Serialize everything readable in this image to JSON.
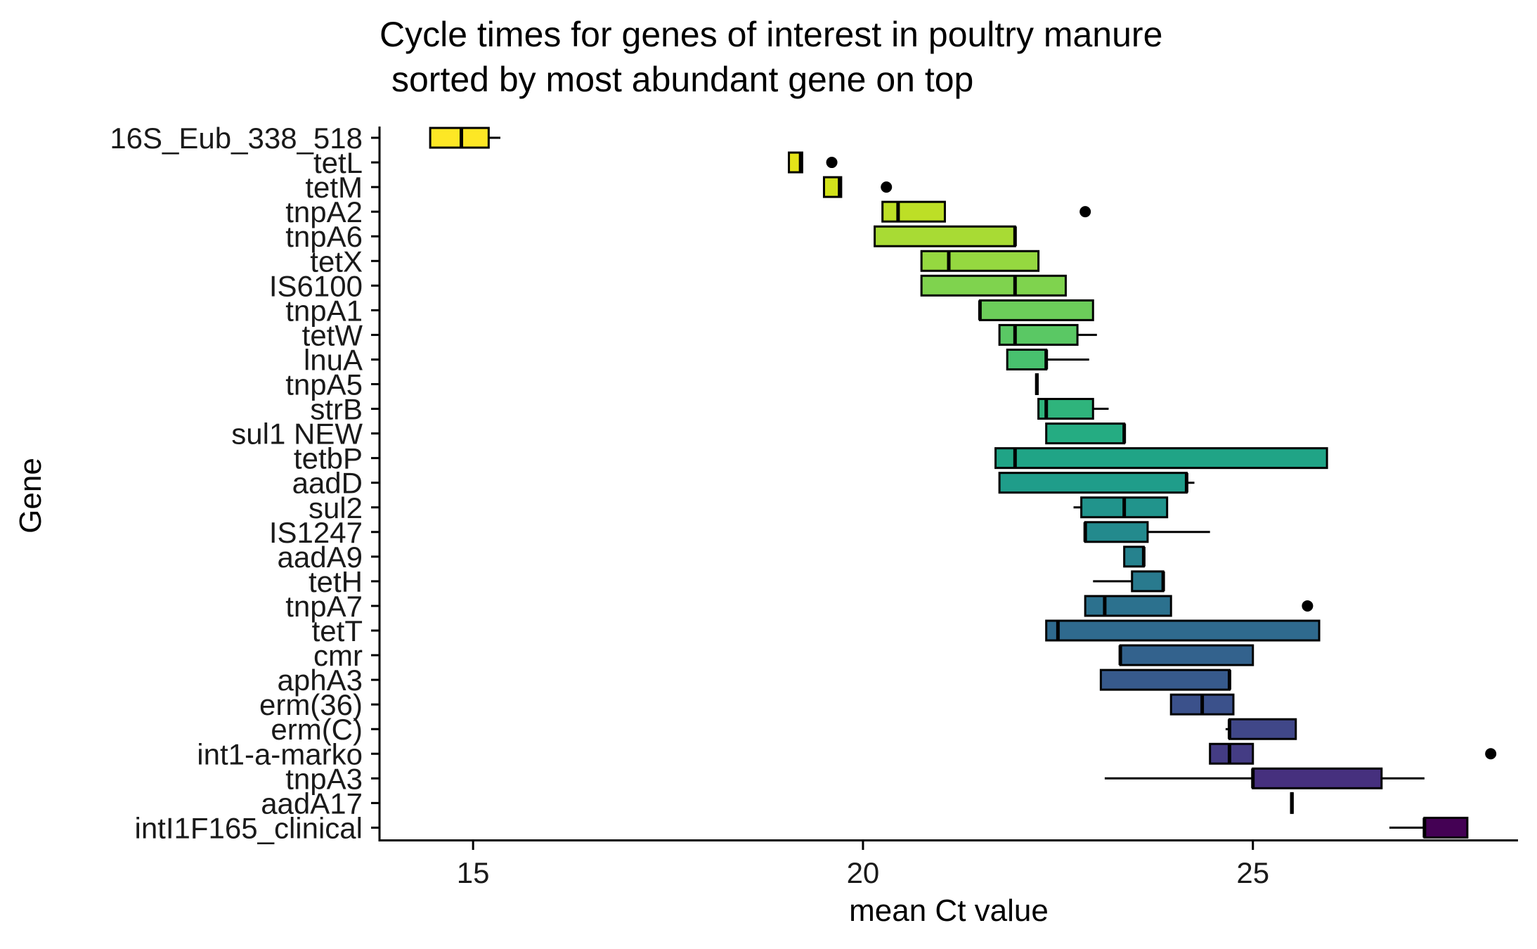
{
  "chart_data": {
    "type": "boxplot",
    "orientation": "horizontal",
    "title": [
      "Cycle times for genes of interest in poultry manure",
      "sorted by most abundant gene on top"
    ],
    "xlabel": "mean Ct value",
    "ylabel": "Gene",
    "xlim": [
      13.8,
      28.4
    ],
    "xticks": [
      15,
      20,
      25
    ],
    "grid": false,
    "legend": "none",
    "categories": [
      "16S_Eub_338_518",
      "tetL",
      "tetM",
      "tnpA2",
      "tnpA6",
      "tetX",
      "IS6100",
      "tnpA1",
      "tetW",
      "lnuA",
      "tnpA5",
      "strB",
      "sul1 NEW",
      "tetbP",
      "aadD",
      "sul2",
      "IS1247",
      "aadA9",
      "tetH",
      "tnpA7",
      "tetT",
      "cmr",
      "aphA3",
      "erm(36)",
      "erm(C)",
      "int1-a-marko",
      "tnpA3",
      "aadA17",
      "intI1F165_clinical"
    ],
    "boxes": [
      {
        "gene": "16S_Eub_338_518",
        "color": "#fde725",
        "whisker_low": 14.45,
        "q1": 14.45,
        "median": 14.85,
        "q3": 15.2,
        "whisker_high": 15.35,
        "outliers": []
      },
      {
        "gene": "tetL",
        "color": "#e5e419",
        "whisker_low": 19.05,
        "q1": 19.05,
        "median": 19.2,
        "q3": 19.22,
        "whisker_high": 19.22,
        "outliers": [
          19.6
        ]
      },
      {
        "gene": "tetM",
        "color": "#d2e21b",
        "whisker_low": 19.5,
        "q1": 19.5,
        "median": 19.7,
        "q3": 19.72,
        "whisker_high": 19.72,
        "outliers": [
          20.3
        ]
      },
      {
        "gene": "tnpA2",
        "color": "#bddf26",
        "whisker_low": 20.25,
        "q1": 20.25,
        "median": 20.45,
        "q3": 21.05,
        "whisker_high": 21.05,
        "outliers": [
          22.85
        ]
      },
      {
        "gene": "tnpA6",
        "color": "#a8db34",
        "whisker_low": 20.15,
        "q1": 20.15,
        "median": 21.95,
        "q3": 21.95,
        "whisker_high": 21.95,
        "outliers": []
      },
      {
        "gene": "tetX",
        "color": "#95d840",
        "whisker_low": 20.75,
        "q1": 20.75,
        "median": 21.1,
        "q3": 22.25,
        "whisker_high": 22.25,
        "outliers": []
      },
      {
        "gene": "IS6100",
        "color": "#7fd34e",
        "whisker_low": 20.75,
        "q1": 20.75,
        "median": 21.95,
        "q3": 22.6,
        "whisker_high": 22.6,
        "outliers": []
      },
      {
        "gene": "tnpA1",
        "color": "#6ccd5a",
        "whisker_low": 21.5,
        "q1": 21.5,
        "median": 21.5,
        "q3": 22.95,
        "whisker_high": 22.95,
        "outliers": []
      },
      {
        "gene": "tetW",
        "color": "#5ac864",
        "whisker_low": 21.75,
        "q1": 21.75,
        "median": 21.95,
        "q3": 22.75,
        "whisker_high": 23.0,
        "outliers": []
      },
      {
        "gene": "lnuA",
        "color": "#48c16e",
        "whisker_low": 21.85,
        "q1": 21.85,
        "median": 22.35,
        "q3": 22.35,
        "whisker_high": 22.9,
        "outliers": []
      },
      {
        "gene": "tnpA5",
        "color": "#3bbb75",
        "whisker_low": 22.22,
        "q1": 22.22,
        "median": 22.23,
        "q3": 22.24,
        "whisker_high": 22.24,
        "outliers": []
      },
      {
        "gene": "strB",
        "color": "#2fb47c",
        "whisker_low": 22.25,
        "q1": 22.25,
        "median": 22.35,
        "q3": 22.95,
        "whisker_high": 23.15,
        "outliers": []
      },
      {
        "gene": "sul1 NEW",
        "color": "#25ac82",
        "whisker_low": 22.35,
        "q1": 22.35,
        "median": 23.35,
        "q3": 23.35,
        "whisker_high": 23.35,
        "outliers": []
      },
      {
        "gene": "tetbP",
        "color": "#20a486",
        "whisker_low": 21.7,
        "q1": 21.7,
        "median": 21.95,
        "q3": 25.95,
        "whisker_high": 25.95,
        "outliers": []
      },
      {
        "gene": "aadD",
        "color": "#1f9d8a",
        "whisker_low": 21.75,
        "q1": 21.75,
        "median": 24.15,
        "q3": 24.15,
        "whisker_high": 24.25,
        "outliers": []
      },
      {
        "gene": "sul2",
        "color": "#21948c",
        "whisker_low": 22.7,
        "q1": 22.8,
        "median": 23.35,
        "q3": 23.9,
        "whisker_high": 23.9,
        "outliers": []
      },
      {
        "gene": "IS1247",
        "color": "#238a8d",
        "whisker_low": 22.85,
        "q1": 22.85,
        "median": 22.85,
        "q3": 23.65,
        "whisker_high": 24.45,
        "outliers": []
      },
      {
        "gene": "aadA9",
        "color": "#26828e",
        "whisker_low": 23.35,
        "q1": 23.35,
        "median": 23.6,
        "q3": 23.6,
        "whisker_high": 23.6,
        "outliers": []
      },
      {
        "gene": "tetH",
        "color": "#297a8e",
        "whisker_low": 22.95,
        "q1": 23.45,
        "median": 23.85,
        "q3": 23.85,
        "whisker_high": 23.85,
        "outliers": []
      },
      {
        "gene": "tnpA7",
        "color": "#2c718e",
        "whisker_low": 22.85,
        "q1": 22.85,
        "median": 23.1,
        "q3": 23.95,
        "whisker_high": 23.95,
        "outliers": [
          25.7
        ]
      },
      {
        "gene": "tetT",
        "color": "#2f6a8e",
        "whisker_low": 22.35,
        "q1": 22.35,
        "median": 22.5,
        "q3": 25.85,
        "whisker_high": 25.85,
        "outliers": []
      },
      {
        "gene": "cmr",
        "color": "#33628d",
        "whisker_low": 23.3,
        "q1": 23.3,
        "median": 23.3,
        "q3": 25.0,
        "whisker_high": 25.0,
        "outliers": []
      },
      {
        "gene": "aphA3",
        "color": "#375a8c",
        "whisker_low": 23.05,
        "q1": 23.05,
        "median": 24.7,
        "q3": 24.7,
        "whisker_high": 24.7,
        "outliers": []
      },
      {
        "gene": "erm(36)",
        "color": "#3b518b",
        "whisker_low": 23.95,
        "q1": 23.95,
        "median": 24.35,
        "q3": 24.75,
        "whisker_high": 24.75,
        "outliers": []
      },
      {
        "gene": "erm(C)",
        "color": "#404788",
        "whisker_low": 24.65,
        "q1": 24.7,
        "median": 24.7,
        "q3": 25.55,
        "whisker_high": 25.55,
        "outliers": []
      },
      {
        "gene": "int1-a-marko",
        "color": "#443c84",
        "whisker_low": 24.45,
        "q1": 24.45,
        "median": 24.7,
        "q3": 25.0,
        "whisker_high": 25.0,
        "outliers": [
          28.05
        ]
      },
      {
        "gene": "tnpA3",
        "color": "#46307e",
        "whisker_low": 23.1,
        "q1": 25.0,
        "median": 25.0,
        "q3": 26.65,
        "whisker_high": 27.2,
        "outliers": []
      },
      {
        "gene": "aadA17",
        "color": "#482575",
        "whisker_low": 25.48,
        "q1": 25.49,
        "median": 25.5,
        "q3": 25.51,
        "whisker_high": 25.52,
        "outliers": []
      },
      {
        "gene": "intI1F165_clinical",
        "color": "#440154",
        "whisker_low": 26.75,
        "q1": 27.2,
        "median": 27.2,
        "q3": 27.75,
        "whisker_high": 27.75,
        "outliers": []
      }
    ]
  }
}
